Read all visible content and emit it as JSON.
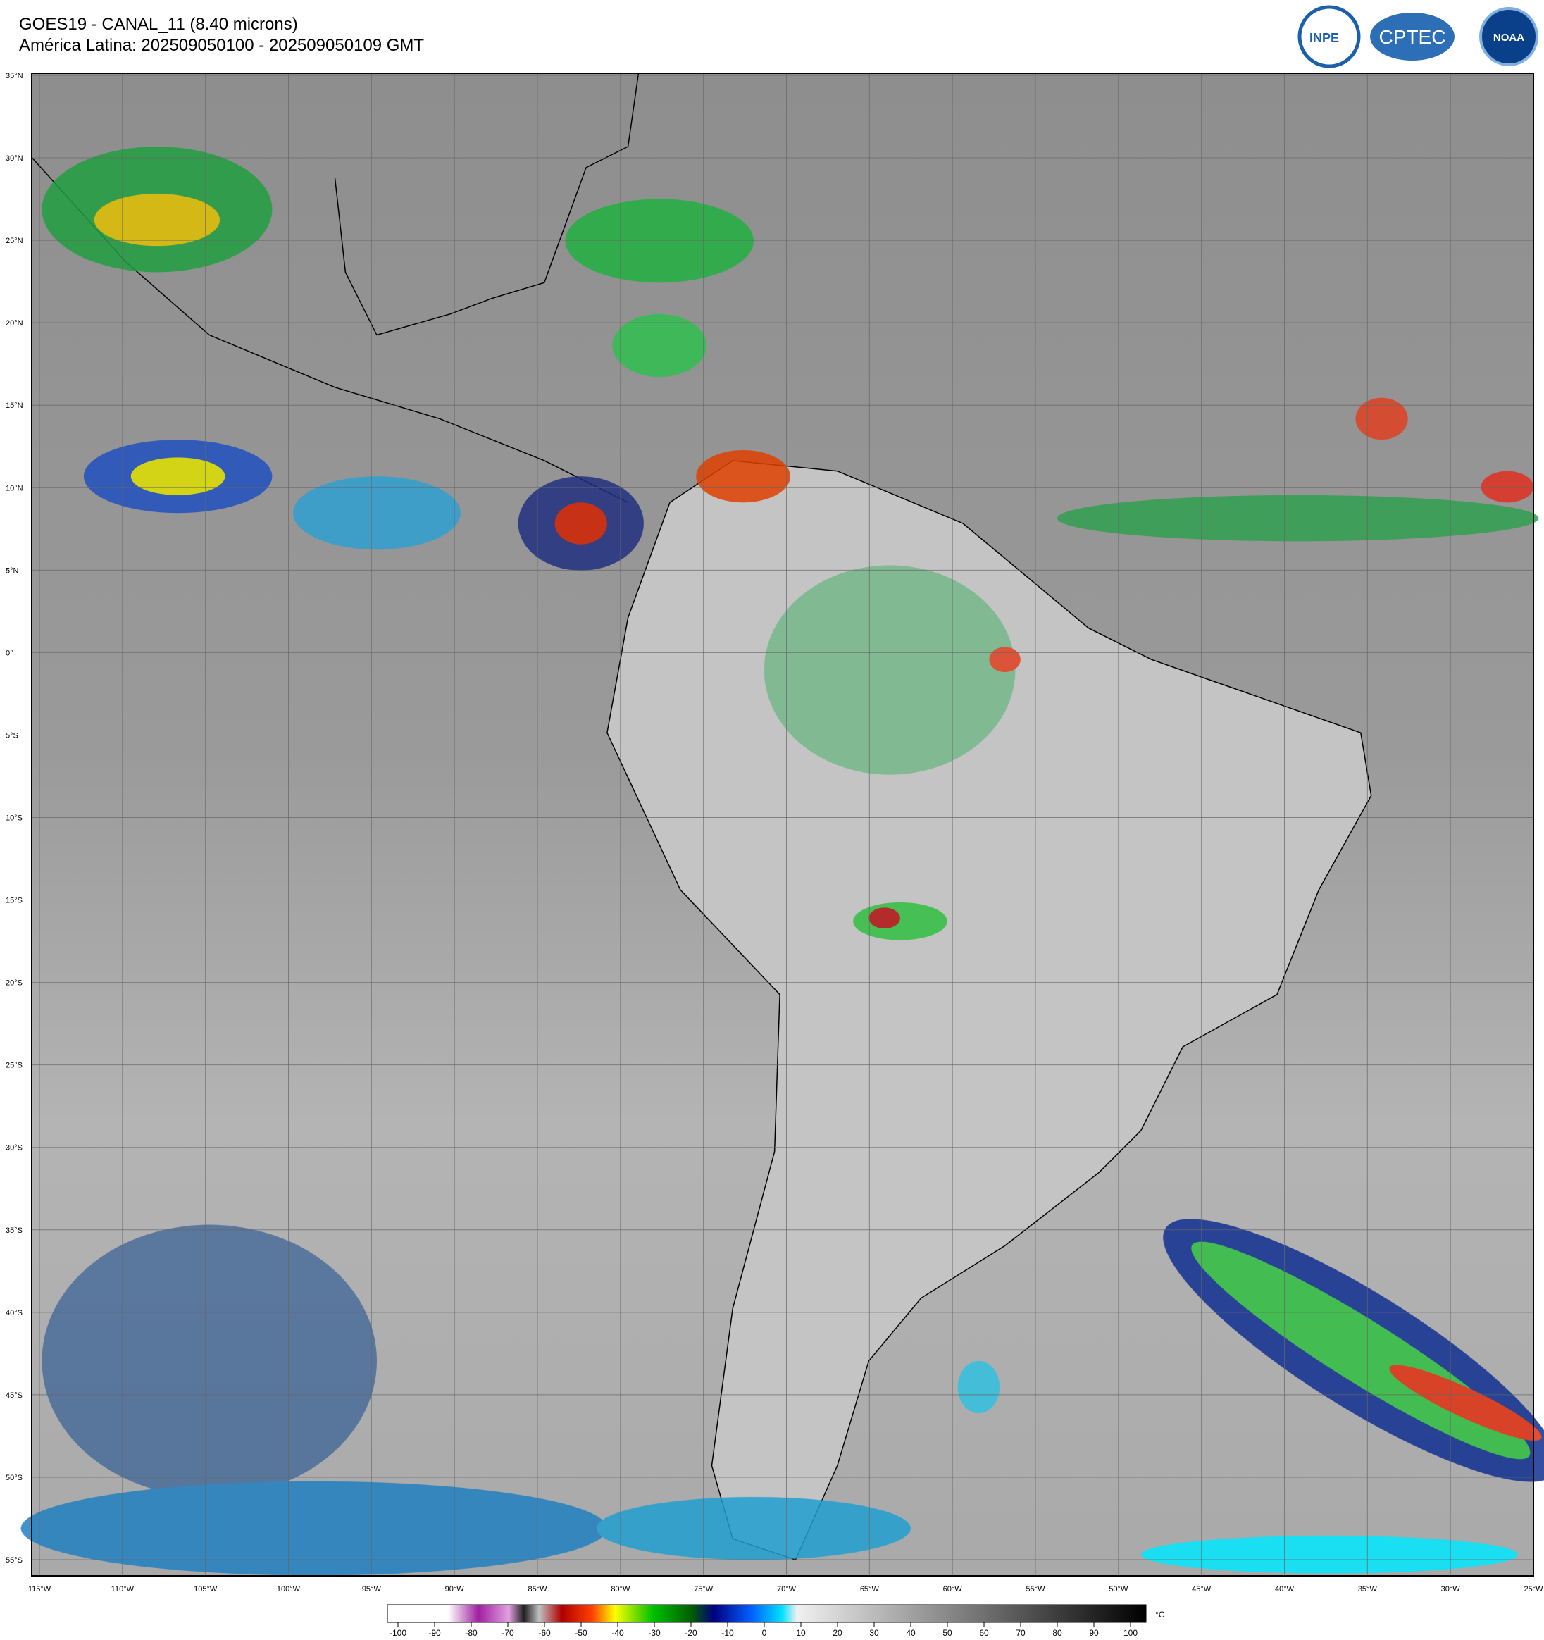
{
  "header": {
    "title": "GOES19 - CANAL_11 (8.40 microns)",
    "subtitle": "América Latina: 202509050100 - 202509050109 GMT"
  },
  "logos": [
    "INPE",
    "CPTEC",
    "NOAA"
  ],
  "map": {
    "lat_labels": [
      "35°N",
      "30°N",
      "25°N",
      "20°N",
      "15°N",
      "10°N",
      "5°N",
      "0°",
      "5°S",
      "10°S",
      "15°S",
      "20°S",
      "25°S",
      "30°S",
      "35°S",
      "40°S",
      "45°S",
      "50°S",
      "55°S"
    ],
    "lon_labels": [
      "115°W",
      "110°W",
      "105°W",
      "100°W",
      "95°W",
      "90°W",
      "85°W",
      "80°W",
      "75°W",
      "70°W",
      "65°W",
      "60°W",
      "55°W",
      "50°W",
      "45°W",
      "40°W",
      "35°W",
      "30°W",
      "25°W"
    ]
  },
  "colorbar": {
    "ticks": [
      -100,
      -90,
      -80,
      -70,
      -60,
      -50,
      -40,
      -30,
      -20,
      -10,
      0,
      10,
      20,
      30,
      40,
      50,
      60,
      70,
      80,
      90,
      100
    ],
    "unit": "°C"
  }
}
